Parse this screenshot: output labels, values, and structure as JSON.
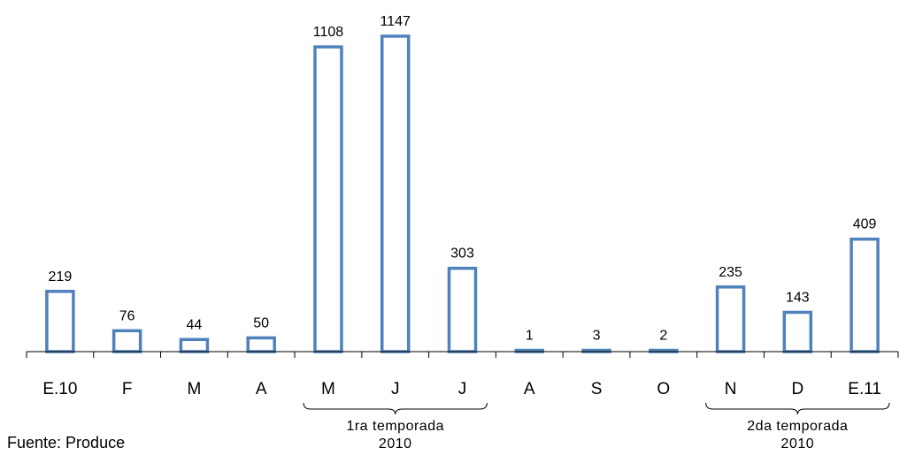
{
  "chart_data": {
    "type": "bar",
    "categories": [
      "E.10",
      "F",
      "M",
      "A",
      "M",
      "J",
      "J",
      "A",
      "S",
      "O",
      "N",
      "D",
      "E.11"
    ],
    "values": [
      219,
      76,
      44,
      50,
      1108,
      1147,
      303,
      1,
      3,
      2,
      235,
      143,
      409
    ],
    "data_labels": [
      "219",
      "76",
      "44",
      "50",
      "1108",
      "1147",
      "303",
      "1",
      "3",
      "2",
      "235",
      "143",
      "409"
    ],
    "title": "",
    "xlabel": "",
    "ylabel": "",
    "ylim": [
      0,
      1150
    ],
    "grid": false,
    "bar_color": "#4F81BD",
    "groups": [
      {
        "label_line1": "1ra  temporada",
        "label_line2": "2010",
        "from": 4,
        "to": 6
      },
      {
        "label_line1": "2da  temporada",
        "label_line2": "2010",
        "from": 10,
        "to": 12
      }
    ]
  },
  "source": "Fuente: Produce"
}
